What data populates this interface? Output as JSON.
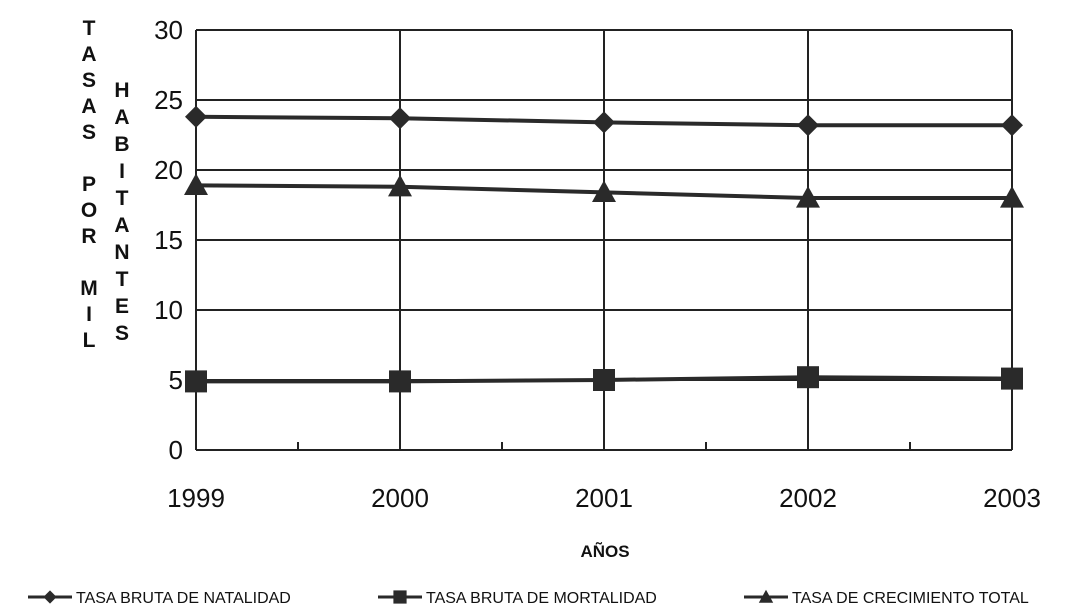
{
  "chart_data": {
    "type": "line",
    "title": "",
    "ylabel_1": "TASAS POR MIL",
    "ylabel_2": "HABITANTES",
    "xlabel": "AÑOS",
    "ylim": [
      0,
      30
    ],
    "yticks": [
      "0",
      "5",
      "10",
      "15",
      "20",
      "25",
      "30"
    ],
    "x": [
      "1999",
      "2000",
      "2001",
      "2002",
      "2003"
    ],
    "grid": true,
    "legend_position": "bottom",
    "series": [
      {
        "name": "TASA BRUTA DE NATALIDAD",
        "marker": "diamond",
        "values": [
          23.8,
          23.7,
          23.4,
          23.2,
          23.2
        ]
      },
      {
        "name": "TASA BRUTA DE MORTALIDAD",
        "marker": "square",
        "values": [
          4.9,
          4.9,
          5.0,
          5.2,
          5.1
        ]
      },
      {
        "name": "TASA DE CRECIMIENTO TOTAL",
        "marker": "triangle",
        "values": [
          18.9,
          18.8,
          18.4,
          18.0,
          18.0
        ]
      }
    ]
  }
}
